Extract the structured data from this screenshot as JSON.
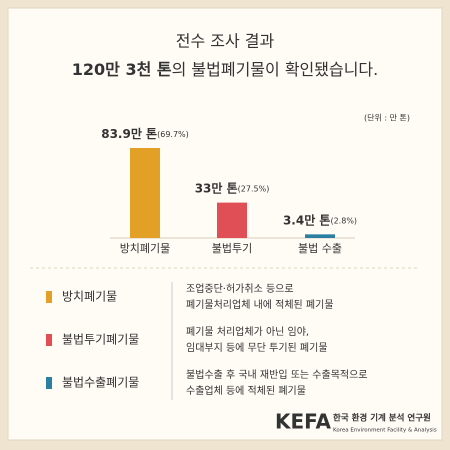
{
  "chart_data": {
    "type": "bar",
    "title_line1": "전수 조사 결과",
    "title_line2_bold": "120만 3천 톤",
    "title_line2_rest": "의 불법폐기물이 확인됐습니다.",
    "unit_label": "(단위 : 만 톤)",
    "categories": [
      "방치폐기물",
      "불법투기",
      "불법 수출"
    ],
    "values": [
      83.9,
      33,
      3.4
    ],
    "value_labels": [
      "83.9만 톤",
      "33만 톤",
      "3.4만 톤"
    ],
    "shares": [
      69.7,
      27.5,
      2.8
    ],
    "share_labels": [
      "(69.7%)",
      "(27.5%)",
      "(2.8%)"
    ],
    "colors": [
      "#e2a126",
      "#e04f55",
      "#2b7fa3"
    ]
  },
  "legend": [
    {
      "name": "방치폐기물",
      "lines": [
        "조업중단·허가취소 등으로",
        "폐기물처리업체 내에 적체된 폐기물"
      ]
    },
    {
      "name": "불법투기폐기물",
      "lines": [
        "폐기물 처리업체가 아닌 임야,",
        "임대부지 등에 무단 투기된 폐기물"
      ]
    },
    {
      "name": "불법수출폐기물",
      "lines": [
        "불법수출 후 국내 재반입 또는 수출목적으로",
        "수출업체 등에 적체된 폐기물"
      ]
    }
  ],
  "footer": {
    "logo": "KEFA",
    "org": "한국 환경 기계 분석 연구원",
    "org_en": "Korea Environment Facility & Analysis"
  }
}
